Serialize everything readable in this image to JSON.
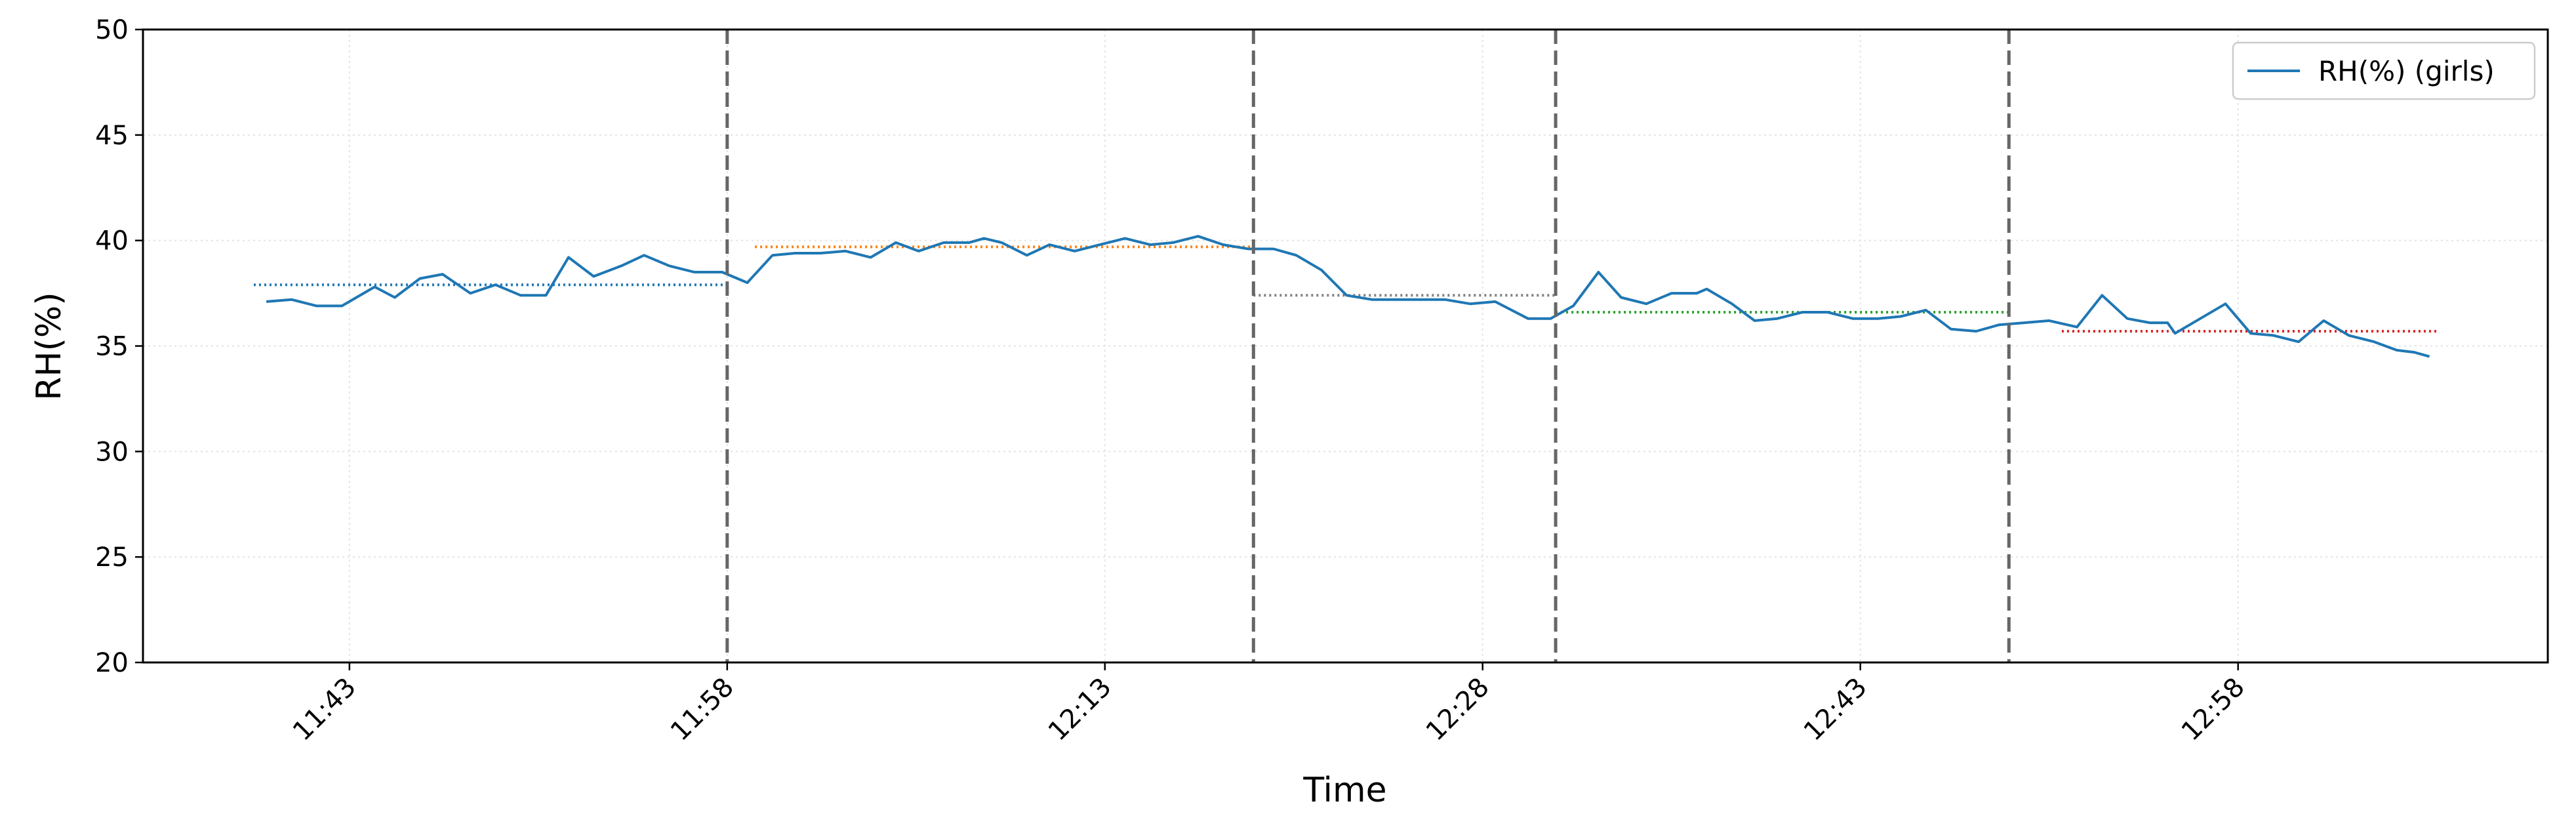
{
  "chart_data": {
    "type": "line",
    "xlabel": "Time",
    "ylabel": "RH(%)",
    "xlim": [
      694.8,
      790.3
    ],
    "ylim": [
      20,
      50
    ],
    "xticks": [
      {
        "value": 703,
        "label": "11:43"
      },
      {
        "value": 718,
        "label": "11:58"
      },
      {
        "value": 733,
        "label": "12:13"
      },
      {
        "value": 748,
        "label": "12:28"
      },
      {
        "value": 763,
        "label": "12:43"
      },
      {
        "value": 778,
        "label": "12:58"
      }
    ],
    "yticks": [
      20,
      25,
      30,
      35,
      40,
      45,
      50
    ],
    "grid": true,
    "legend": "upper right",
    "series": [
      {
        "name": "RH(%) (girls)",
        "color": "#1f77b4",
        "x": [
          699.7,
          700.7,
          701.7,
          702.7,
          704.0,
          704.8,
          705.8,
          706.7,
          707.8,
          708.8,
          709.8,
          710.8,
          711.7,
          712.7,
          713.8,
          714.7,
          715.7,
          716.7,
          717.8,
          718.8,
          719.8,
          720.7,
          721.7,
          722.7,
          723.7,
          724.7,
          725.6,
          726.6,
          727.6,
          728.2,
          728.9,
          729.9,
          730.8,
          731.8,
          732.8,
          733.8,
          734.8,
          735.7,
          736.7,
          737.7,
          738.7,
          739.7,
          740.6,
          741.6,
          742.6,
          743.6,
          744.5,
          745.5,
          746.5,
          747.5,
          748.5,
          749.8,
          750.7,
          751.6,
          752.6,
          753.5,
          754.5,
          755.5,
          756.5,
          756.9,
          757.9,
          758.8,
          759.7,
          760.7,
          761.7,
          762.7,
          763.7,
          764.6,
          765.6,
          766.6,
          767.6,
          768.5,
          769.5,
          770.5,
          771.6,
          772.6,
          773.6,
          774.5,
          775.2,
          775.5,
          776.5,
          777.5,
          778.5,
          779.4,
          780.4,
          781.4,
          782.4,
          783.4,
          784.3,
          785.0,
          785.6
        ],
        "values": [
          37.1,
          37.2,
          36.9,
          36.9,
          37.8,
          37.3,
          38.2,
          38.4,
          37.5,
          37.9,
          37.4,
          37.4,
          39.2,
          38.3,
          38.8,
          39.3,
          38.8,
          38.5,
          38.5,
          38.0,
          39.3,
          39.4,
          39.4,
          39.5,
          39.2,
          39.9,
          39.5,
          39.9,
          39.9,
          40.1,
          39.9,
          39.3,
          39.8,
          39.5,
          39.8,
          40.1,
          39.8,
          39.9,
          40.2,
          39.8,
          39.6,
          39.6,
          39.3,
          38.6,
          37.4,
          37.2,
          37.2,
          37.2,
          37.2,
          37.0,
          37.1,
          36.3,
          36.3,
          36.9,
          38.5,
          37.3,
          37.0,
          37.5,
          37.5,
          37.7,
          37.0,
          36.2,
          36.3,
          36.6,
          36.6,
          36.3,
          36.3,
          36.4,
          36.7,
          35.8,
          35.7,
          36.0,
          36.1,
          36.2,
          35.9,
          37.4,
          36.3,
          36.1,
          36.1,
          35.6,
          36.3,
          37.0,
          35.6,
          35.5,
          35.2,
          36.2,
          35.5,
          35.2,
          34.8,
          34.7,
          34.5
        ]
      }
    ],
    "vlines": [
      718,
      738.9,
      750.9,
      768.9
    ],
    "mean_lines": [
      {
        "x": [
          699.2,
          718
        ],
        "y": 37.9,
        "color": "#1f77b4"
      },
      {
        "x": [
          719.1,
          738.9
        ],
        "y": 39.7,
        "color": "#ff7f0e"
      },
      {
        "x": [
          738.9,
          750.9
        ],
        "y": 37.4,
        "color": "#7f7f7f"
      },
      {
        "x": [
          750.9,
          768.9
        ],
        "y": 36.6,
        "color": "#2ca02c"
      },
      {
        "x": [
          771.0,
          785.9
        ],
        "y": 35.7,
        "color": "#d62728"
      }
    ]
  }
}
